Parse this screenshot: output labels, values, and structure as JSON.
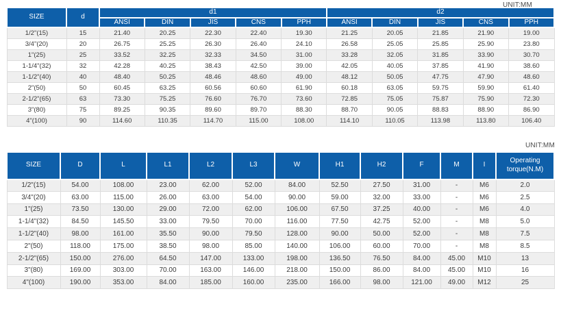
{
  "page": {
    "unit_label_top": "UNIT:MM",
    "unit_label_bottom": "UNIT:MM"
  },
  "colors": {
    "header_bg": "#0E5FA9",
    "header_text": "#FFFFFF",
    "row_alt_bg": "#EFEFEF",
    "row_bg": "#FFFFFF",
    "grid_border": "#DCDCDC",
    "outer_border": "#C2C2C2",
    "text": "#3A3A3A"
  },
  "table1": {
    "corner_headers": {
      "size": "SIZE",
      "d": "d"
    },
    "groups": [
      {
        "label": "d1"
      },
      {
        "label": "d2"
      }
    ],
    "standards": [
      "ANSI",
      "DIN",
      "JIS",
      "CNS",
      "PPH"
    ],
    "rows": [
      {
        "size": "1/2\"(15)",
        "d": "15",
        "d1": [
          "21.40",
          "20.25",
          "22.30",
          "22.40",
          "19.30"
        ],
        "d2": [
          "21.25",
          "20.05",
          "21.85",
          "21.90",
          "19.00"
        ]
      },
      {
        "size": "3/4\"(20)",
        "d": "20",
        "d1": [
          "26.75",
          "25.25",
          "26.30",
          "26.40",
          "24.10"
        ],
        "d2": [
          "26.58",
          "25.05",
          "25.85",
          "25.90",
          "23.80"
        ]
      },
      {
        "size": "1\"(25)",
        "d": "25",
        "d1": [
          "33.52",
          "32.25",
          "32.33",
          "34.50",
          "31.00"
        ],
        "d2": [
          "33.28",
          "32.05",
          "31.85",
          "33.90",
          "30.70"
        ]
      },
      {
        "size": "1-1/4\"(32)",
        "d": "32",
        "d1": [
          "42.28",
          "40.25",
          "38.43",
          "42.50",
          "39.00"
        ],
        "d2": [
          "42.05",
          "40.05",
          "37.85",
          "41.90",
          "38.60"
        ]
      },
      {
        "size": "1-1/2\"(40)",
        "d": "40",
        "d1": [
          "48.40",
          "50.25",
          "48.46",
          "48.60",
          "49.00"
        ],
        "d2": [
          "48.12",
          "50.05",
          "47.75",
          "47.90",
          "48.60"
        ]
      },
      {
        "size": "2\"(50)",
        "d": "50",
        "d1": [
          "60.45",
          "63.25",
          "60.56",
          "60.60",
          "61.90"
        ],
        "d2": [
          "60.18",
          "63.05",
          "59.75",
          "59.90",
          "61.40"
        ]
      },
      {
        "size": "2-1/2\"(65)",
        "d": "63",
        "d1": [
          "73.30",
          "75.25",
          "76.60",
          "76.70",
          "73.60"
        ],
        "d2": [
          "72.85",
          "75.05",
          "75.87",
          "75.90",
          "72.30"
        ]
      },
      {
        "size": "3\"(80)",
        "d": "75",
        "d1": [
          "89.25",
          "90.35",
          "89.60",
          "89.70",
          "88.30"
        ],
        "d2": [
          "88.70",
          "90.05",
          "88.83",
          "88.90",
          "86.90"
        ]
      },
      {
        "size": "4\"(100)",
        "d": "90",
        "d1": [
          "114.60",
          "110.35",
          "114.70",
          "115.00",
          "108.00"
        ],
        "d2": [
          "114.10",
          "110.05",
          "113.98",
          "113.80",
          "106.40"
        ]
      }
    ]
  },
  "table2": {
    "headers": [
      "SIZE",
      "D",
      "L",
      "L1",
      "L2",
      "L3",
      "W",
      "H1",
      "H2",
      "F",
      "M",
      "I",
      "Operating torque(N.M)"
    ],
    "rows": [
      [
        "1/2\"(15)",
        "54.00",
        "108.00",
        "23.00",
        "62.00",
        "52.00",
        "84.00",
        "52.50",
        "27.50",
        "31.00",
        "-",
        "M6",
        "2.0"
      ],
      [
        "3/4\"(20)",
        "63.00",
        "115.00",
        "26.00",
        "63.00",
        "54.00",
        "90.00",
        "59.00",
        "32.00",
        "33.00",
        "-",
        "M6",
        "2.5"
      ],
      [
        "1\"(25)",
        "73.50",
        "130.00",
        "29.00",
        "72.00",
        "62.00",
        "106.00",
        "67.50",
        "37.25",
        "40.00",
        "-",
        "M6",
        "4.0"
      ],
      [
        "1-1/4\"(32)",
        "84.50",
        "145.50",
        "33.00",
        "79.50",
        "70.00",
        "116.00",
        "77.50",
        "42.75",
        "52.00",
        "-",
        "M8",
        "5.0"
      ],
      [
        "1-1/2\"(40)",
        "98.00",
        "161.00",
        "35.50",
        "90.00",
        "79.50",
        "128.00",
        "90.00",
        "50.00",
        "52.00",
        "-",
        "M8",
        "7.5"
      ],
      [
        "2\"(50)",
        "118.00",
        "175.00",
        "38.50",
        "98.00",
        "85.00",
        "140.00",
        "106.00",
        "60.00",
        "70.00",
        "-",
        "M8",
        "8.5"
      ],
      [
        "2-1/2\"(65)",
        "150.00",
        "276.00",
        "64.50",
        "147.00",
        "133.00",
        "198.00",
        "136.50",
        "76.50",
        "84.00",
        "45.00",
        "M10",
        "13"
      ],
      [
        "3\"(80)",
        "169.00",
        "303.00",
        "70.00",
        "163.00",
        "146.00",
        "218.00",
        "150.00",
        "86.00",
        "84.00",
        "45.00",
        "M10",
        "16"
      ],
      [
        "4\"(100)",
        "190.00",
        "353.00",
        "84.00",
        "185.00",
        "160.00",
        "235.00",
        "166.00",
        "98.00",
        "121.00",
        "49.00",
        "M12",
        "25"
      ]
    ]
  }
}
